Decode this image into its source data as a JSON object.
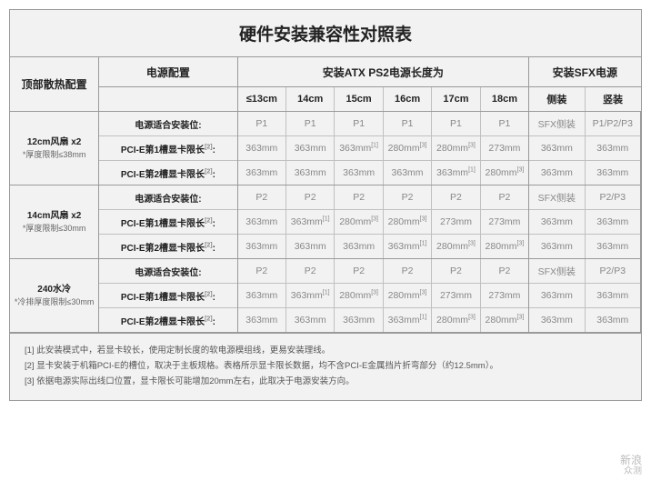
{
  "title": "硬件安装兼容性对照表",
  "headers": {
    "top_config": "顶部散热配置",
    "psu_config": "电源配置",
    "atx_header": "安装ATX PS2电源长度为",
    "sfx_header": "安装SFX电源",
    "atx_cols": [
      "≤13cm",
      "14cm",
      "15cm",
      "16cm",
      "17cm",
      "18cm"
    ],
    "sfx_cols": [
      "侧装",
      "竖装"
    ]
  },
  "row_labels": {
    "psu_pos": "电源适合安装位:",
    "pcie1": "PCI-E第1槽显卡限长",
    "pcie2": "PCI-E第2槽显卡限长",
    "sup2": "[2]",
    "colon": ":"
  },
  "sections": [
    {
      "config_main": "12cm风扇 x2",
      "config_sub": "*厚度限制≤38mm",
      "psu_pos": [
        "P1",
        "P1",
        "P1",
        "P1",
        "P1",
        "P1",
        "SFX侧装",
        "P1/P2/P3"
      ],
      "pcie1": [
        [
          "363mm",
          null
        ],
        [
          "363mm",
          null
        ],
        [
          "363mm",
          "[1]"
        ],
        [
          "280mm",
          "[3]"
        ],
        [
          "280mm",
          "[3]"
        ],
        [
          "273mm",
          null
        ],
        [
          "363mm",
          null
        ],
        [
          "363mm",
          null
        ]
      ],
      "pcie2": [
        [
          "363mm",
          null
        ],
        [
          "363mm",
          null
        ],
        [
          "363mm",
          null
        ],
        [
          "363mm",
          null
        ],
        [
          "363mm",
          "[1]"
        ],
        [
          "280mm",
          "[3]"
        ],
        [
          "363mm",
          null
        ],
        [
          "363mm",
          null
        ]
      ]
    },
    {
      "config_main": "14cm风扇 x2",
      "config_sub": "*厚度限制≤30mm",
      "psu_pos": [
        "P2",
        "P2",
        "P2",
        "P2",
        "P2",
        "P2",
        "SFX侧装",
        "P2/P3"
      ],
      "pcie1": [
        [
          "363mm",
          null
        ],
        [
          "363mm",
          "[1]"
        ],
        [
          "280mm",
          "[3]"
        ],
        [
          "280mm",
          "[3]"
        ],
        [
          "273mm",
          null
        ],
        [
          "273mm",
          null
        ],
        [
          "363mm",
          null
        ],
        [
          "363mm",
          null
        ]
      ],
      "pcie2": [
        [
          "363mm",
          null
        ],
        [
          "363mm",
          null
        ],
        [
          "363mm",
          null
        ],
        [
          "363mm",
          "[1]"
        ],
        [
          "280mm",
          "[3]"
        ],
        [
          "280mm",
          "[3]"
        ],
        [
          "363mm",
          null
        ],
        [
          "363mm",
          null
        ]
      ]
    },
    {
      "config_main": "240水冷",
      "config_sub": "*冷排厚度限制≤30mm",
      "psu_pos": [
        "P2",
        "P2",
        "P2",
        "P2",
        "P2",
        "P2",
        "SFX侧装",
        "P2/P3"
      ],
      "pcie1": [
        [
          "363mm",
          null
        ],
        [
          "363mm",
          "[1]"
        ],
        [
          "280mm",
          "[3]"
        ],
        [
          "280mm",
          "[3]"
        ],
        [
          "273mm",
          null
        ],
        [
          "273mm",
          null
        ],
        [
          "363mm",
          null
        ],
        [
          "363mm",
          null
        ]
      ],
      "pcie2": [
        [
          "363mm",
          null
        ],
        [
          "363mm",
          null
        ],
        [
          "363mm",
          null
        ],
        [
          "363mm",
          "[1]"
        ],
        [
          "280mm",
          "[3]"
        ],
        [
          "280mm",
          "[3]"
        ],
        [
          "363mm",
          null
        ],
        [
          "363mm",
          null
        ]
      ]
    }
  ],
  "notes": [
    "[1] 此安装模式中，若显卡较长，使用定制长度的软电源模组线，更易安装理线。",
    "[2] 显卡安装于机箱PCI-E的槽位，取决于主板规格。表格所示显卡限长数据，均不含PCI-E金属挡片折弯部分（约12.5mm）。",
    "[3] 依据电源实际出线口位置，显卡限长可能增加20mm左右，此取决于电源安装方向。"
  ],
  "watermark": {
    "line1": "新浪",
    "line2": "众测"
  },
  "style": {
    "bg": "#f2f2f2",
    "border": "#9a9a9a",
    "inner_border": "#c0c0c0",
    "cell_text": "#888888",
    "title_fontsize": 19
  }
}
